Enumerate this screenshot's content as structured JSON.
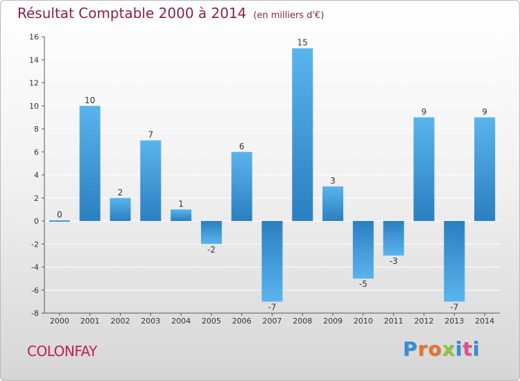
{
  "title": {
    "main": "Résultat Comptable 2000 à 2014",
    "unit": "(en milliers d'€)"
  },
  "commune": "COLONFAY",
  "logo": {
    "text": "Proxiti",
    "letter_colors": [
      "#2f8fd8",
      "#e8722b",
      "#e8722b",
      "#8cc63f",
      "#2f8fd8",
      "#e84c8b",
      "#2f8fd8"
    ]
  },
  "colors": {
    "bar_top": "#5ab4ec",
    "bar_bottom": "#2a7fc0",
    "title": "#8a1f48",
    "commune": "#c0204a",
    "axis": "#555555",
    "grid": "#ffffff"
  },
  "chart_data": {
    "type": "bar",
    "categories": [
      "2000",
      "2001",
      "2002",
      "2003",
      "2004",
      "2005",
      "2006",
      "2007",
      "2008",
      "2009",
      "2010",
      "2011",
      "2012",
      "2013",
      "2014"
    ],
    "values": [
      0,
      10,
      2,
      7,
      1,
      -2,
      6,
      -7,
      15,
      3,
      -5,
      -3,
      9,
      -7,
      9
    ],
    "data_labels": [
      "0",
      "10",
      "2",
      "7",
      "1",
      "-2",
      "6",
      "-7",
      "15",
      "3",
      "-5",
      "-3",
      "9",
      "-7",
      "9"
    ],
    "ylim": [
      -8,
      16
    ],
    "yticks": [
      -8,
      -6,
      -4,
      -2,
      0,
      2,
      4,
      6,
      8,
      10,
      12,
      14,
      16
    ],
    "grid": true,
    "xlabel": "",
    "ylabel": ""
  }
}
